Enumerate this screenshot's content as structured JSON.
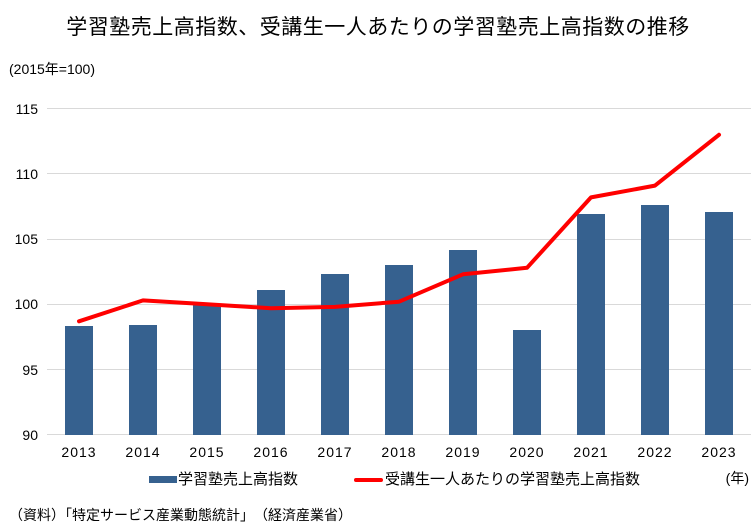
{
  "title": "学習塾売上高指数、受講生一人あたりの学習塾売上高指数の推移",
  "unit_note": "(2015年=100)",
  "x_axis_unit": "(年)",
  "source": "（資料）「特定サービス産業動態統計」　（経済産業省）",
  "colors": {
    "bar": "#36618f",
    "line": "#ff0000",
    "grid": "#d9d9d9",
    "text": "#000000",
    "background": "#ffffff"
  },
  "chart_data": {
    "type": "bar",
    "title": "学習塾売上高指数、受講生一人あたりの学習塾売上高指数の推移",
    "subtitle": "(2015年=100)",
    "categories": [
      "2013",
      "2014",
      "2015",
      "2016",
      "2017",
      "2018",
      "2019",
      "2020",
      "2021",
      "2022",
      "2023"
    ],
    "series": [
      {
        "name": "学習塾売上高指数",
        "type": "bar",
        "color": "#36618f",
        "values": [
          98.3,
          98.4,
          100.0,
          101.1,
          102.3,
          103.0,
          104.2,
          98.0,
          106.9,
          107.6,
          107.1
        ]
      },
      {
        "name": "受講生一人あたりの学習塾売上高指数",
        "type": "line",
        "color": "#ff0000",
        "values": [
          98.7,
          100.3,
          100.0,
          99.7,
          99.8,
          100.2,
          102.3,
          102.8,
          108.2,
          109.1,
          113.0
        ]
      }
    ],
    "xlabel": "(年)",
    "ylabel": "",
    "ylim": [
      90,
      115
    ],
    "yticks": [
      90,
      95,
      100,
      105,
      110,
      115
    ],
    "grid": true,
    "legend_position": "bottom"
  }
}
